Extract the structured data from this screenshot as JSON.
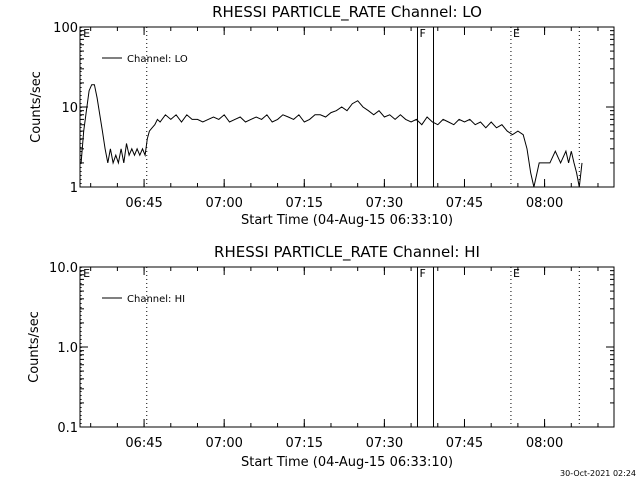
{
  "footer_timestamp": "30-Oct-2021 02:24",
  "chart_data": [
    {
      "type": "line",
      "title": "RHESSI PARTICLE_RATE Channel: LO",
      "xlabel": "Start Time (04-Aug-15 06:33:10)",
      "ylabel": "Counts/sec",
      "y_scale": "log",
      "ylim": [
        1,
        100
      ],
      "y_ticks": [
        1,
        10,
        100
      ],
      "y_tick_labels": [
        "1",
        "10",
        "100"
      ],
      "xlim_minutes": [
        0,
        100
      ],
      "x_ticks": [
        12,
        27,
        42,
        57,
        72,
        87
      ],
      "x_tick_labels": [
        "06:45",
        "07:00",
        "07:15",
        "07:30",
        "07:45",
        "08:00"
      ],
      "legend": {
        "label": "Channel: LO",
        "position": "top-left"
      },
      "flags": [
        {
          "label": "E",
          "x": 0.2,
          "style": "dotted"
        },
        {
          "label": "",
          "x": 12.5,
          "style": "dotted"
        },
        {
          "label": "F",
          "x": 63.2,
          "style": "solid"
        },
        {
          "label": "",
          "x": 66.2,
          "style": "solid"
        },
        {
          "label": "E",
          "x": 80.7,
          "style": "dotted"
        },
        {
          "label": "",
          "x": 93.5,
          "style": "dotted"
        }
      ],
      "series": [
        {
          "name": "Channel: LO",
          "x": [
            0.2,
            0.7,
            1.2,
            1.7,
            2.2,
            2.7,
            3.2,
            3.7,
            4.2,
            4.7,
            5.2,
            5.7,
            6.2,
            6.7,
            7.2,
            7.7,
            8.2,
            8.7,
            9.2,
            9.7,
            10.2,
            10.7,
            11.2,
            11.7,
            12.2,
            12.6,
            13.0,
            13.5,
            14.0,
            14.5,
            15.0,
            16.0,
            17.0,
            18.0,
            19.0,
            20.0,
            21.0,
            22.0,
            23.0,
            24.0,
            25.0,
            26.0,
            27.0,
            28.0,
            29.0,
            30.0,
            31.0,
            32.0,
            33.0,
            34.0,
            35.0,
            36.0,
            37.0,
            38.0,
            39.0,
            40.0,
            41.0,
            42.0,
            43.0,
            44.0,
            45.0,
            46.0,
            47.0,
            48.0,
            49.0,
            50.0,
            51.0,
            52.0,
            53.0,
            54.0,
            55.0,
            56.0,
            57.0,
            58.0,
            59.0,
            60.0,
            61.0,
            62.0,
            63.0,
            64.0,
            65.0,
            66.0,
            67.0,
            68.0,
            69.0,
            70.0,
            71.0,
            72.0,
            73.0,
            74.0,
            75.0,
            76.0,
            77.0,
            78.0,
            79.0,
            80.0,
            81.0,
            82.0,
            83.0,
            83.7,
            84.4,
            85.0,
            86.0,
            87.0,
            88.0,
            89.0,
            90.0,
            91.0,
            91.5,
            92.0,
            92.5,
            93.0,
            93.5,
            94.0
          ],
          "y": [
            2.0,
            5.0,
            9.0,
            16.0,
            19.0,
            19.0,
            13.0,
            8.0,
            5.0,
            3.0,
            2.0,
            3.0,
            2.0,
            2.5,
            2.0,
            3.0,
            2.0,
            3.5,
            2.5,
            3.0,
            2.5,
            3.0,
            2.5,
            3.0,
            2.5,
            4.0,
            5.0,
            5.5,
            6.0,
            7.0,
            6.5,
            8.0,
            7.0,
            8.0,
            6.5,
            8.0,
            7.0,
            7.0,
            6.5,
            7.0,
            7.5,
            7.0,
            8.0,
            6.5,
            7.0,
            7.5,
            6.5,
            7.0,
            7.5,
            7.0,
            8.0,
            6.5,
            7.0,
            8.0,
            7.5,
            7.0,
            8.0,
            6.5,
            7.0,
            8.0,
            8.0,
            7.5,
            8.5,
            9.0,
            10.0,
            9.0,
            11.0,
            12.0,
            10.0,
            9.0,
            8.0,
            9.0,
            7.5,
            8.0,
            7.0,
            8.0,
            7.0,
            6.5,
            7.0,
            6.0,
            7.5,
            6.5,
            6.0,
            7.0,
            6.5,
            6.0,
            7.0,
            6.5,
            7.0,
            6.0,
            6.5,
            5.5,
            6.5,
            5.5,
            6.0,
            5.0,
            4.5,
            5.0,
            4.5,
            3.0,
            1.5,
            1.0,
            2.0,
            2.0,
            2.0,
            2.8,
            2.0,
            2.8,
            2.0,
            2.8,
            2.0,
            1.5,
            1.0,
            2.0
          ]
        }
      ]
    },
    {
      "type": "line",
      "title": "RHESSI PARTICLE_RATE Channel: HI",
      "xlabel": "Start Time (04-Aug-15 06:33:10)",
      "ylabel": "Counts/sec",
      "y_scale": "log",
      "ylim": [
        0.1,
        10
      ],
      "y_ticks": [
        0.1,
        1,
        10
      ],
      "y_tick_labels": [
        "0.1",
        "1.0",
        "10.0"
      ],
      "xlim_minutes": [
        0,
        100
      ],
      "x_ticks": [
        12,
        27,
        42,
        57,
        72,
        87
      ],
      "x_tick_labels": [
        "06:45",
        "07:00",
        "07:15",
        "07:30",
        "07:45",
        "08:00"
      ],
      "legend": {
        "label": "Channel: HI",
        "position": "top-left"
      },
      "flags": [
        {
          "label": "E",
          "x": 0.2,
          "style": "dotted"
        },
        {
          "label": "",
          "x": 12.5,
          "style": "dotted"
        },
        {
          "label": "F",
          "x": 63.2,
          "style": "solid"
        },
        {
          "label": "",
          "x": 66.2,
          "style": "solid"
        },
        {
          "label": "E",
          "x": 80.7,
          "style": "dotted"
        },
        {
          "label": "",
          "x": 93.5,
          "style": "dotted"
        }
      ],
      "series": [
        {
          "name": "Channel: HI",
          "x": [],
          "y": []
        }
      ]
    }
  ]
}
